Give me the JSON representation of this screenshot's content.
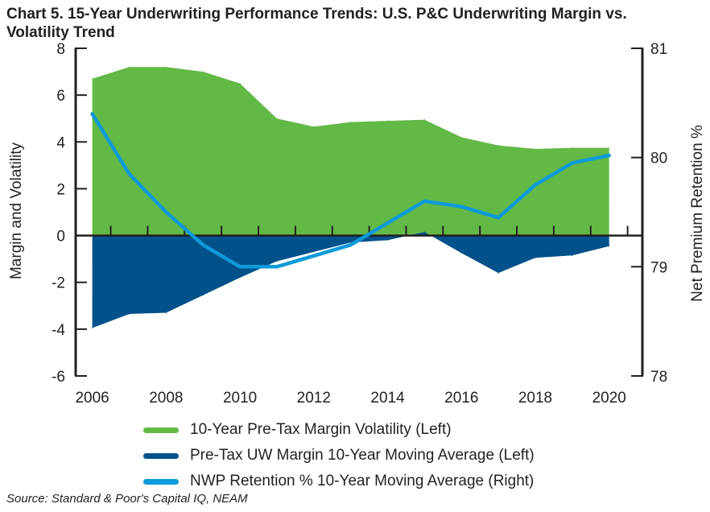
{
  "title": "Chart 5. 15-Year Underwriting Performance Trends: U.S. P&C Underwriting Margin vs. Volatility Trend",
  "source": "Source: Standard & Poor's Capital IQ, NEAM",
  "colors": {
    "volatility": "#62b946",
    "margin": "#03518a",
    "retention": "#0f9ad8",
    "axis": "#231f20"
  },
  "chart_data": {
    "type": "area",
    "title": "Chart 5. 15-Year Underwriting Performance Trends: U.S. P&C Underwriting Margin vs. Volatility Trend",
    "xlabel": "",
    "ylabel": "Margin and Volatility",
    "y2label": "Net Premium Retention %",
    "x": [
      2006,
      2007,
      2008,
      2009,
      2010,
      2011,
      2012,
      2013,
      2014,
      2015,
      2016,
      2017,
      2018,
      2019,
      2020
    ],
    "xticks": [
      "2006",
      "2008",
      "2010",
      "2012",
      "2014",
      "2016",
      "2018",
      "2020"
    ],
    "ylim": [
      -6,
      8
    ],
    "yticks": [
      "-6",
      "-4",
      "-2",
      "0",
      "2",
      "4",
      "6",
      "8"
    ],
    "y2lim": [
      78,
      81
    ],
    "y2ticks": [
      "78",
      "79",
      "80",
      "81"
    ],
    "series": [
      {
        "name": "10-Year Pre-Tax Margin Volatility (Left)",
        "type": "area",
        "axis": "left",
        "values": [
          6.7,
          7.2,
          7.2,
          7.0,
          6.5,
          5.0,
          4.65,
          4.85,
          4.9,
          4.95,
          4.2,
          3.85,
          3.7,
          3.75,
          3.75
        ]
      },
      {
        "name": "Pre-Tax UW Margin 10-Year Moving Average (Left)",
        "type": "area",
        "axis": "left",
        "values": [
          -3.95,
          -3.35,
          -3.3,
          -2.55,
          -1.8,
          -1.1,
          -0.7,
          -0.3,
          -0.2,
          0.15,
          -0.75,
          -1.6,
          -0.95,
          -0.85,
          -0.45
        ]
      },
      {
        "name": "NWP Retention % 10-Year Moving Average (Right)",
        "type": "line",
        "axis": "right",
        "values": [
          80.4,
          79.85,
          79.5,
          79.2,
          79.0,
          79.0,
          79.1,
          79.2,
          79.4,
          79.6,
          79.55,
          79.45,
          79.75,
          79.95,
          80.02
        ]
      }
    ]
  }
}
